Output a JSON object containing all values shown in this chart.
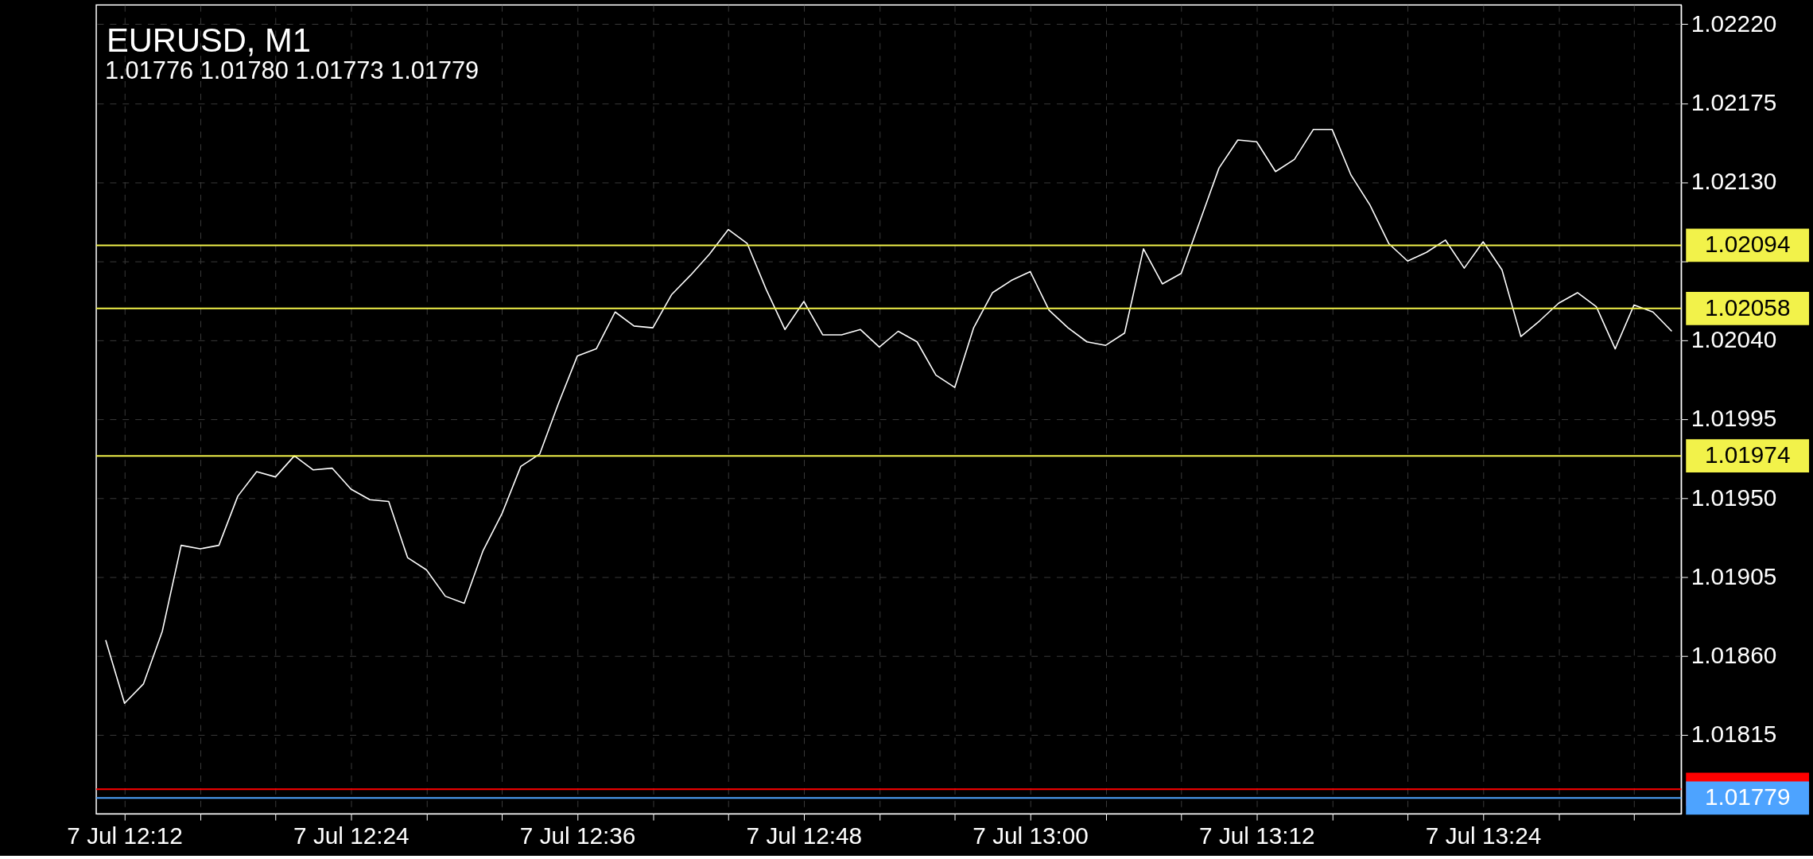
{
  "chart_data": {
    "type": "line",
    "title": "EURUSD, M1",
    "subtitle": "1.01776 1.01780 1.01773 1.01779",
    "categories": [
      null,
      "7 Jul 12:12",
      null,
      null,
      null,
      null,
      null,
      null,
      null,
      null,
      null,
      null,
      null,
      "7 Jul 12:24",
      null,
      null,
      null,
      null,
      null,
      null,
      null,
      null,
      null,
      null,
      null,
      "7 Jul 12:36",
      null,
      null,
      null,
      null,
      null,
      null,
      null,
      null,
      null,
      null,
      null,
      "7 Jul 12:48",
      null,
      null,
      null,
      null,
      null,
      null,
      null,
      null,
      null,
      null,
      null,
      "7 Jul 13:00",
      null,
      null,
      null,
      null,
      null,
      null,
      null,
      null,
      null,
      null,
      null,
      "7 Jul 13:12",
      null,
      null,
      null,
      null,
      null,
      null,
      null,
      null,
      null,
      null,
      null,
      "7 Jul 13:24",
      null,
      null,
      null,
      null,
      null,
      null,
      null,
      null,
      null,
      null
    ],
    "ylim": [
      1.0177,
      1.02231
    ],
    "yticks": [
      {
        "value": 1.0222,
        "label": "1.02220"
      },
      {
        "value": 1.02175,
        "label": "1.02175"
      },
      {
        "value": 1.0213,
        "label": "1.02130"
      },
      {
        "value": 1.02085,
        "label": null
      },
      {
        "value": 1.0204,
        "label": "1.02040"
      },
      {
        "value": 1.01995,
        "label": "1.01995"
      },
      {
        "value": 1.0195,
        "label": "1.01950"
      },
      {
        "value": 1.01905,
        "label": "1.01905"
      },
      {
        "value": 1.0186,
        "label": "1.01860"
      },
      {
        "value": 1.01815,
        "label": "1.01815"
      }
    ],
    "grid": true,
    "line_style": "solid",
    "series": [
      {
        "color": "#ffffff",
        "values": [
          1.01869,
          1.01833,
          1.01844,
          1.01874,
          1.01923,
          1.01921,
          1.01923,
          1.01951,
          1.01965,
          1.01962,
          1.01974,
          1.01966,
          1.01967,
          1.01955,
          1.01949,
          1.01948,
          1.01916,
          1.01909,
          1.01894,
          1.0189,
          1.0192,
          1.01941,
          1.01968,
          1.01975,
          1.02004,
          1.02031,
          1.02035,
          1.02056,
          1.02048,
          1.02047,
          1.02066,
          1.02077,
          1.02089,
          1.02103,
          1.02095,
          1.02069,
          1.02046,
          1.02062,
          1.02043,
          1.02043,
          1.02046,
          1.02036,
          1.02045,
          1.02039,
          1.0202,
          1.02013,
          1.02047,
          1.02067,
          1.02074,
          1.02079,
          1.02057,
          1.02047,
          1.02039,
          1.02037,
          1.02044,
          1.02092,
          1.02072,
          1.02078,
          1.02108,
          1.02138,
          1.02154,
          1.02153,
          1.02136,
          1.02143,
          1.0216,
          1.0216,
          1.02134,
          1.02117,
          1.02095,
          1.02085,
          1.0209,
          1.02097,
          1.02081,
          1.02096,
          1.0208,
          1.02042,
          1.02051,
          1.02061,
          1.02067,
          1.02059,
          1.02035,
          1.0206,
          1.02056,
          1.02045
        ]
      }
    ],
    "ref_lines": [
      {
        "axis": "y",
        "value": 1.02094,
        "label": "1.02094",
        "color": "#f2f24a"
      },
      {
        "axis": "y",
        "value": 1.02058,
        "label": "1.02058",
        "color": "#f2f24a"
      },
      {
        "axis": "y",
        "value": 1.01974,
        "label": "1.01974",
        "color": "#f2f24a"
      },
      {
        "axis": "y",
        "value": 1.01784,
        "label": null,
        "color": "#ff0000"
      },
      {
        "axis": "y",
        "value": 1.01779,
        "label": "1.01779",
        "color": "#4da3ff"
      }
    ]
  }
}
